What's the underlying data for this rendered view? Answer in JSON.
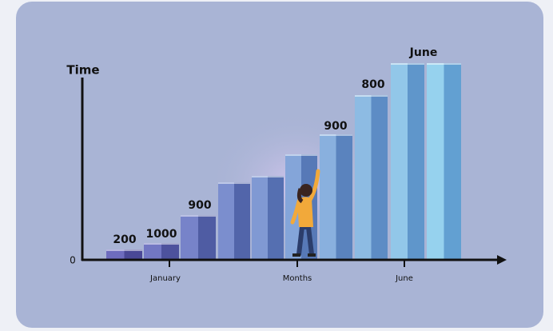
{
  "y_axis": {
    "label": "Time",
    "tick": "0"
  },
  "x_axis": {
    "labels": [
      "January",
      "Months",
      "June"
    ]
  },
  "bar_labels": [
    "200",
    "1000",
    "900",
    "900",
    "800",
    "June"
  ]
}
